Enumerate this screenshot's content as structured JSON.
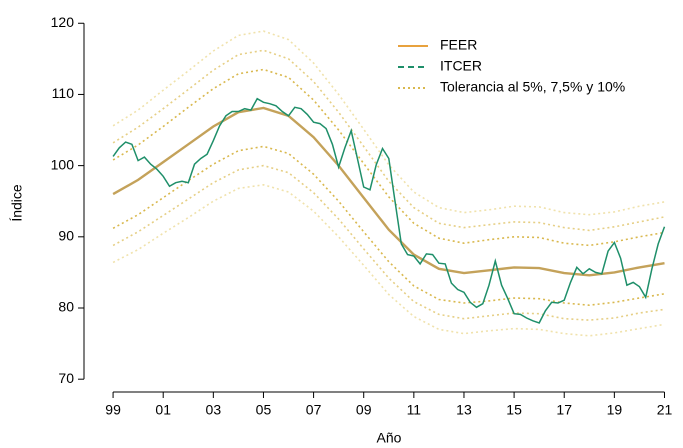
{
  "chart_data": {
    "type": "line",
    "xlabel": "Año",
    "ylabel": "Índice",
    "xlim": [
      1997.84,
      2021.3
    ],
    "ylim": [
      68.2,
      121.3
    ],
    "xticks": [
      {
        "value": 1999,
        "label": "99"
      },
      {
        "value": 2001,
        "label": "01"
      },
      {
        "value": 2003,
        "label": "03"
      },
      {
        "value": 2005,
        "label": "05"
      },
      {
        "value": 2007,
        "label": "07"
      },
      {
        "value": 2009,
        "label": "09"
      },
      {
        "value": 2011,
        "label": "11"
      },
      {
        "value": 2013,
        "label": "13"
      },
      {
        "value": 2015,
        "label": "15"
      },
      {
        "value": 2017,
        "label": "17"
      },
      {
        "value": 2019,
        "label": "19"
      },
      {
        "value": 2021,
        "label": "21"
      }
    ],
    "yticks": [
      70,
      80,
      90,
      100,
      110,
      120
    ],
    "legend": "upper right",
    "x": [
      1999,
      2000,
      2001,
      2002,
      2003,
      2004,
      2005,
      2006,
      2007,
      2008,
      2009,
      2010,
      2011,
      2012,
      2013,
      2014,
      2015,
      2016,
      2017,
      2018,
      2019,
      2020,
      2021
    ],
    "series": [
      {
        "name": "FEER",
        "color": "#c4a25a",
        "legend_color": "#e8a23e",
        "values": [
          96,
          98,
          100.5,
          103,
          105.5,
          107.5,
          108.1,
          107,
          104,
          100,
          95.5,
          91,
          87.5,
          85.5,
          84.9,
          85.3,
          85.7,
          85.6,
          84.9,
          84.6,
          85,
          85.7,
          86.3
        ]
      },
      {
        "name": "ITCER",
        "color": "#1f8f6a",
        "dash": "6 4",
        "x": [
          1999,
          1999.25,
          1999.5,
          1999.75,
          2000,
          2000.25,
          2000.5,
          2000.75,
          2001,
          2001.25,
          2001.5,
          2001.75,
          2002,
          2002.25,
          2002.5,
          2002.75,
          2003,
          2003.25,
          2003.5,
          2003.75,
          2004,
          2004.25,
          2004.5,
          2004.75,
          2005,
          2005.25,
          2005.5,
          2005.75,
          2006,
          2006.25,
          2006.5,
          2006.75,
          2007,
          2007.25,
          2007.5,
          2007.75,
          2008,
          2008.25,
          2008.5,
          2008.75,
          2009,
          2009.25,
          2009.5,
          2009.75,
          2010,
          2010.25,
          2010.5,
          2010.75,
          2011,
          2011.25,
          2011.5,
          2011.75,
          2012,
          2012.25,
          2012.5,
          2012.75,
          2013,
          2013.25,
          2013.5,
          2013.75,
          2014,
          2014.25,
          2014.5,
          2014.75,
          2015,
          2015.25,
          2015.5,
          2015.75,
          2016,
          2016.25,
          2016.5,
          2016.75,
          2017,
          2017.25,
          2017.5,
          2017.75,
          2018,
          2018.25,
          2018.5,
          2018.75,
          2019,
          2019.25,
          2019.5,
          2019.75,
          2020,
          2020.25,
          2020.5,
          2020.75,
          2021
        ],
        "values": [
          101.3,
          102.5,
          103.3,
          103,
          100.7,
          101.2,
          100.2,
          99.5,
          98.5,
          97.1,
          97.6,
          97.8,
          97.6,
          100.2,
          101,
          101.6,
          103.5,
          105.6,
          107,
          107.6,
          107.6,
          108,
          107.8,
          109.4,
          108.9,
          108.7,
          108.4,
          107.6,
          107,
          108.2,
          108,
          107.2,
          106.1,
          105.9,
          105.2,
          103,
          99.8,
          102.5,
          104.9,
          101,
          97,
          96.6,
          100.1,
          102.4,
          101,
          95,
          89,
          87.5,
          87.3,
          86.2,
          87.6,
          87.5,
          86.3,
          86.2,
          83.5,
          82.6,
          82.2,
          80.8,
          80.1,
          80.6,
          83.2,
          86.6,
          83.2,
          81.3,
          79.2,
          79.1,
          78.6,
          78.2,
          77.9,
          79.6,
          80.8,
          80.7,
          81.1,
          83.6,
          85.7,
          84.8,
          85.5,
          85,
          84.8,
          88,
          89.2,
          87,
          83.2,
          83.6,
          83,
          81.5,
          85.5,
          89,
          91.4
        ]
      },
      {
        "name": "Tolerancia al 5%, 7,5% y 10%",
        "color": "#d9b84e",
        "dash": "2 3",
        "colors": [
          "#f0e2ac",
          "#e6cf85",
          "#d9b84e",
          "#d9b84e",
          "#e6cf85",
          "#f0e2ac"
        ],
        "lines": [
          [
            86.4,
            88.2,
            90.5,
            92.7,
            95.0,
            96.8,
            97.3,
            96.3,
            93.6,
            90,
            86.0,
            81.9,
            78.8,
            77.0,
            76.4,
            76.8,
            77.1,
            77.0,
            76.4,
            76.1,
            76.5,
            77.1,
            77.7
          ],
          [
            88.8,
            90.7,
            93.0,
            95.3,
            97.6,
            99.4,
            100.0,
            99.0,
            96.2,
            92.5,
            88.3,
            84.2,
            80.9,
            79.1,
            78.5,
            78.9,
            79.3,
            79.2,
            78.5,
            78.3,
            78.6,
            79.3,
            79.8
          ],
          [
            91.2,
            93.1,
            95.5,
            97.9,
            100.2,
            102.1,
            102.7,
            101.7,
            98.8,
            95,
            90.7,
            86.5,
            83.1,
            81.2,
            80.7,
            81.0,
            81.4,
            81.3,
            80.7,
            80.4,
            80.8,
            81.4,
            82.0
          ],
          [
            100.8,
            102.9,
            105.5,
            108.2,
            110.8,
            112.9,
            113.5,
            112.4,
            109.2,
            105,
            100.3,
            95.6,
            91.9,
            89.8,
            89.1,
            89.6,
            90.0,
            89.9,
            89.1,
            88.8,
            89.3,
            90.0,
            90.6
          ],
          [
            103.2,
            105.4,
            108.0,
            110.7,
            113.4,
            115.6,
            116.2,
            115.0,
            111.8,
            107.5,
            102.7,
            97.8,
            94.1,
            91.9,
            91.3,
            91.7,
            92.1,
            92.0,
            91.3,
            90.9,
            91.4,
            92.1,
            92.8
          ],
          [
            105.6,
            107.8,
            110.6,
            113.3,
            116.1,
            118.3,
            118.9,
            117.7,
            114.4,
            110,
            105.1,
            100.1,
            96.3,
            94.1,
            93.4,
            93.8,
            94.3,
            94.2,
            93.4,
            93.1,
            93.5,
            94.3,
            94.9
          ]
        ]
      }
    ]
  }
}
